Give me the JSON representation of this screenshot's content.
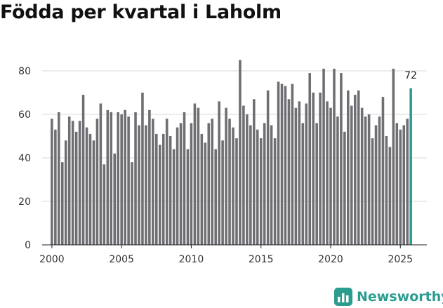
{
  "chart_data": {
    "type": "bar",
    "title": "Födda per kvartal i Laholm",
    "xlabel": "",
    "ylabel": "",
    "ylim": [
      0,
      90
    ],
    "xlim": [
      1999.3,
      2026.9
    ],
    "yticks": [
      0,
      20,
      40,
      60,
      80
    ],
    "xticks": [
      2000,
      2005,
      2010,
      2015,
      2020,
      2025
    ],
    "grid": "horizontal",
    "legend": "none",
    "start_year": 2000,
    "bar_color": "#6f6e73",
    "highlight_color": "#2a9d8f",
    "values": [
      58,
      53,
      61,
      38,
      48,
      59,
      57,
      52,
      57,
      69,
      54,
      51,
      48,
      58,
      65,
      37,
      62,
      61,
      42,
      61,
      60,
      62,
      59,
      38,
      61,
      55,
      70,
      55,
      62,
      58,
      51,
      46,
      51,
      58,
      50,
      44,
      54,
      56,
      61,
      44,
      56,
      65,
      63,
      51,
      47,
      56,
      58,
      44,
      66,
      48,
      63,
      58,
      54,
      49,
      85,
      64,
      60,
      55,
      67,
      53,
      49,
      56,
      71,
      55,
      49,
      75,
      74,
      73,
      67,
      74,
      63,
      66,
      56,
      65,
      79,
      70,
      56,
      70,
      81,
      66,
      63,
      81,
      59,
      79,
      52,
      71,
      64,
      69,
      71,
      63,
      59,
      60,
      49,
      55,
      59,
      68,
      50,
      45,
      81,
      56,
      53,
      55,
      58,
      72
    ],
    "annotation": {
      "index": 103,
      "text": "72"
    }
  },
  "brand": {
    "name": "Newsworthy",
    "icon": "bar-chart-icon",
    "color": "#2a9d8f"
  }
}
